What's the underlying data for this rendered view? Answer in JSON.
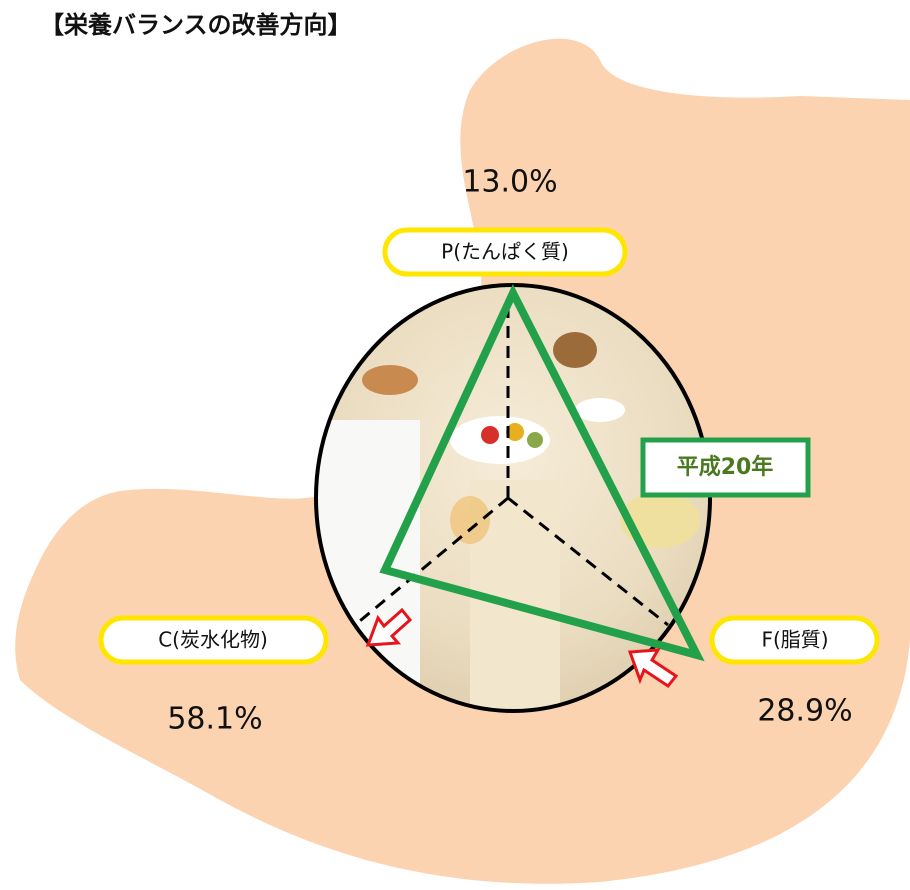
{
  "title": "【栄養バランスの改善方向】",
  "nutrients": [
    {
      "label": "P(たんぱく質)",
      "value": "13.0%"
    },
    {
      "label": "C(炭水化物)",
      "value": "58.1%"
    },
    {
      "label": "F(脂質)",
      "value": "28.9%"
    }
  ],
  "year_label": "平成20年"
}
